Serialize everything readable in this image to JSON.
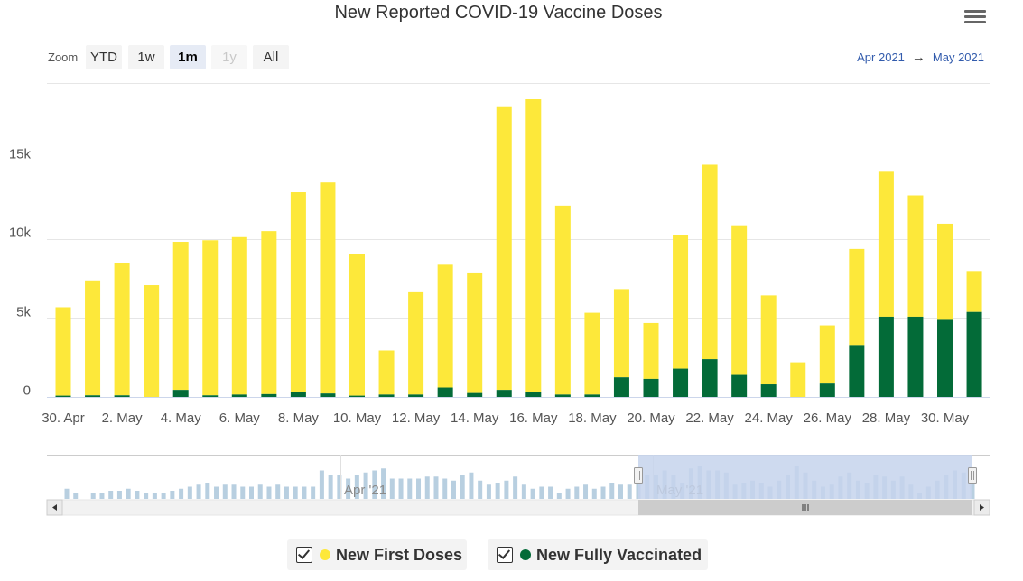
{
  "colors": {
    "first": "#fde83a",
    "full": "#036b38",
    "nav_bar": "#b8cfe0",
    "nav_mask": "#c6d4ec"
  },
  "toolbar": {
    "zoom_label": "Zoom",
    "buttons": [
      {
        "label": "YTD",
        "state": "normal"
      },
      {
        "label": "1w",
        "state": "normal"
      },
      {
        "label": "1m",
        "state": "active"
      },
      {
        "label": "1y",
        "state": "disabled"
      },
      {
        "label": "All",
        "state": "normal"
      }
    ],
    "range_from": "Apr 2021",
    "range_arrow": "→",
    "range_to": "May 2021"
  },
  "chart_data": {
    "type": "bar",
    "stacked": true,
    "title": "New Reported COVID-19 Vaccine Doses",
    "xlabel": "",
    "ylabel": "",
    "ylim": [
      0,
      20000
    ],
    "yticks": [
      0,
      5000,
      10000,
      15000
    ],
    "ytick_labels": [
      "0",
      "5k",
      "10k",
      "15k"
    ],
    "categories": [
      "30. Apr",
      "1. May",
      "2. May",
      "3. May",
      "4. May",
      "5. May",
      "6. May",
      "7. May",
      "8. May",
      "9. May",
      "10. May",
      "11. May",
      "12. May",
      "13. May",
      "14. May",
      "15. May",
      "16. May",
      "17. May",
      "18. May",
      "19. May",
      "20. May",
      "21. May",
      "22. May",
      "23. May",
      "24. May",
      "25. May",
      "26. May",
      "27. May",
      "28. May",
      "29. May",
      "30. May",
      "31. May"
    ],
    "xtick_labels": [
      "30. Apr",
      "2. May",
      "4. May",
      "6. May",
      "8. May",
      "10. May",
      "12. May",
      "14. May",
      "16. May",
      "18. May",
      "20. May",
      "22. May",
      "24. May",
      "26. May",
      "28. May",
      "30. May"
    ],
    "series": [
      {
        "name": "New Fully Vaccinated",
        "values": [
          80,
          100,
          100,
          0,
          450,
          100,
          150,
          180,
          300,
          220,
          80,
          150,
          150,
          600,
          250,
          450,
          300,
          150,
          150,
          1250,
          1150,
          1800,
          2400,
          1400,
          800,
          0,
          850,
          3300,
          5100,
          5100,
          4900,
          5400
        ]
      },
      {
        "name": "New First Doses",
        "values": [
          5620,
          7300,
          8400,
          7100,
          9400,
          9850,
          10000,
          10350,
          12700,
          13400,
          9020,
          2800,
          6500,
          7800,
          7600,
          17950,
          18600,
          12000,
          5200,
          5600,
          3550,
          8500,
          12350,
          9500,
          5650,
          2200,
          3700,
          6100,
          9200,
          7700,
          6100,
          2600
        ]
      }
    ],
    "legend": [
      "New First Doses",
      "New Fully Vaccinated"
    ],
    "navigator": {
      "labels": [
        "Apr '21",
        "May '21"
      ],
      "values": [
        5,
        3,
        0,
        3,
        3,
        4,
        4,
        5,
        4,
        3,
        3,
        3,
        4,
        5,
        6,
        7,
        8,
        6,
        7,
        7,
        6,
        6,
        7,
        6,
        7,
        6,
        6,
        6,
        6,
        14,
        12,
        12,
        10,
        12,
        13,
        14,
        15,
        10,
        10,
        10,
        10,
        11,
        11,
        10,
        9,
        12,
        13,
        9,
        7,
        8,
        9,
        11,
        7,
        5,
        6,
        6,
        3,
        5,
        6,
        7,
        5,
        6,
        8,
        7,
        7,
        10,
        12,
        12,
        14,
        12,
        8,
        15,
        16,
        14,
        14,
        13,
        7,
        8,
        9,
        8,
        6,
        9,
        12,
        16,
        13,
        9,
        6,
        7,
        11,
        13,
        9,
        8,
        12,
        11,
        9,
        11,
        7,
        3,
        6,
        9,
        12,
        14,
        13,
        10
      ]
    }
  },
  "legend": {
    "first_label": "New First Doses",
    "full_label": "New Fully Vaccinated"
  }
}
